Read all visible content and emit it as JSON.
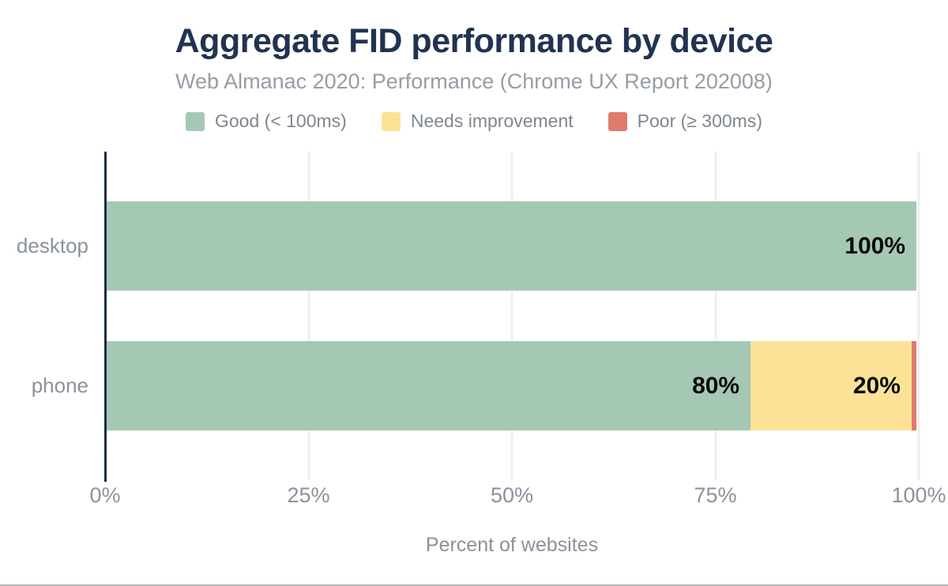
{
  "chart_data": {
    "type": "bar",
    "orientation": "horizontal",
    "stacked": true,
    "title": "Aggregate FID performance by device",
    "subtitle": "Web Almanac 2020: Performance (Chrome UX Report 202008)",
    "xlabel": "Percent of websites",
    "categories": [
      "desktop",
      "phone"
    ],
    "series": [
      {
        "name": "Good (< 100ms)",
        "color": "#a5c8b4",
        "values": [
          100,
          80
        ],
        "labels": [
          "100%",
          "80%"
        ]
      },
      {
        "name": "Needs improvement",
        "color": "#fce296",
        "values": [
          0,
          20
        ],
        "labels": [
          "",
          "20%"
        ]
      },
      {
        "name": "Poor (≥ 300ms)",
        "color": "#e07a6b",
        "values": [
          0,
          0.6
        ],
        "labels": [
          "",
          ""
        ]
      }
    ],
    "xlim": [
      0,
      100
    ],
    "xticks": [
      "0%",
      "25%",
      "50%",
      "75%",
      "100%"
    ],
    "xtick_values": [
      0,
      25,
      50,
      75,
      100
    ],
    "grid": true,
    "legend_position": "top",
    "axis_color": "#1c2c48",
    "gridline_color": "#efefef",
    "title_color": "#213350",
    "text_color": "#8b919c"
  }
}
